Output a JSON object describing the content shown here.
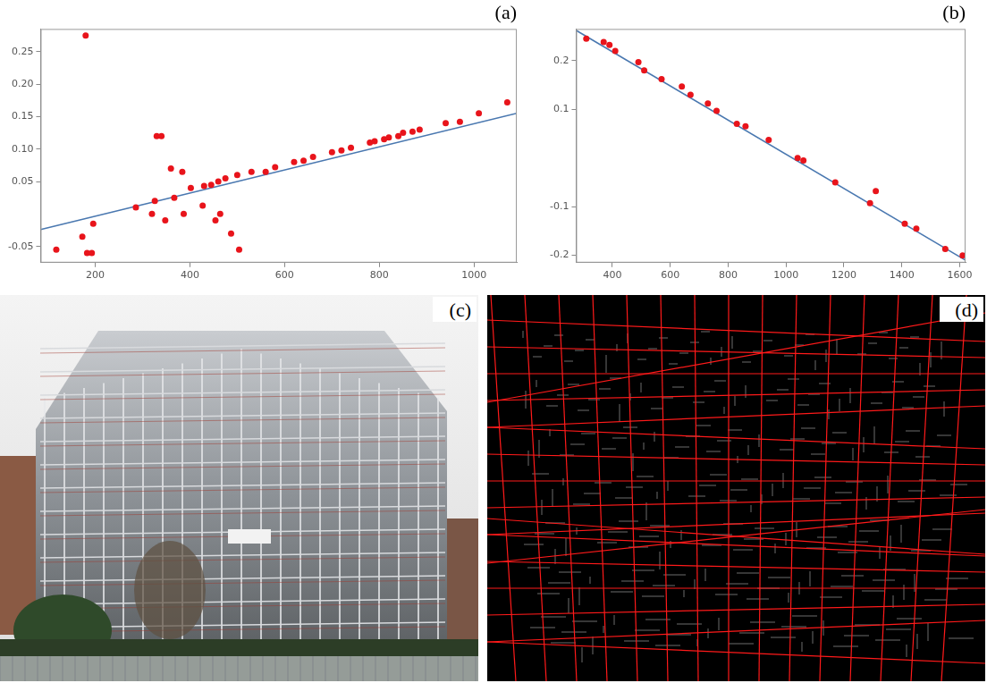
{
  "chart_data": [
    {
      "type": "scatter",
      "panel": "(a)",
      "grid": false,
      "xlim": [
        85,
        1090
      ],
      "ylim": [
        -0.075,
        0.285
      ],
      "xticks": [
        200,
        400,
        600,
        800,
        1000
      ],
      "yticks": [
        -0.05,
        0.05,
        {
          "value": 0.1,
          "label": "0.10"
        },
        0.15,
        {
          "value": 0.2,
          "label": "0.20"
        },
        0.25
      ],
      "series": [
        {
          "type": "scatter",
          "color": "#e8141b",
          "marker": "circle",
          "x": [
            118,
            173,
            180,
            183,
            193,
            196,
            286,
            320,
            326,
            330,
            340,
            348,
            360,
            367,
            384,
            387,
            402,
            427,
            430,
            445,
            454,
            460,
            464,
            475,
            487,
            500,
            504,
            530,
            560,
            580,
            620,
            640,
            660,
            700,
            720,
            740,
            780,
            790,
            810,
            820,
            840,
            850,
            870,
            885,
            940,
            970,
            1010,
            1070
          ],
          "values": [
            -0.055,
            -0.035,
            0.275,
            -0.06,
            -0.06,
            -0.015,
            0.01,
            0.0,
            0.02,
            0.12,
            0.12,
            -0.01,
            0.07,
            0.025,
            0.065,
            0.0,
            0.04,
            0.013,
            0.043,
            0.045,
            -0.01,
            0.05,
            0.0,
            0.055,
            -0.03,
            0.06,
            -0.055,
            0.065,
            0.065,
            0.072,
            0.08,
            0.082,
            0.088,
            0.095,
            0.098,
            0.102,
            0.11,
            0.112,
            0.115,
            0.118,
            0.12,
            0.125,
            0.127,
            0.13,
            0.14,
            0.142,
            0.155,
            0.172
          ]
        },
        {
          "type": "line",
          "color": "#4a78b0",
          "line_style": "solid",
          "x": [
            85,
            1090
          ],
          "values": [
            -0.024,
            0.155
          ]
        }
      ]
    },
    {
      "type": "scatter",
      "panel": "(b)",
      "grid": false,
      "xlim": [
        275,
        1620
      ],
      "ylim": [
        -0.215,
        0.265
      ],
      "xticks": [
        400,
        600,
        800,
        1000,
        1200,
        1400,
        1600
      ],
      "yticks": [
        -0.2,
        -0.1,
        0.1,
        0.2
      ],
      "series": [
        {
          "type": "scatter",
          "color": "#e8141b",
          "marker": "circle",
          "x": [
            310,
            370,
            390,
            410,
            490,
            510,
            570,
            640,
            670,
            730,
            760,
            830,
            860,
            940,
            1040,
            1060,
            1170,
            1290,
            1310,
            1410,
            1450,
            1550,
            1610
          ],
          "values": [
            0.245,
            0.238,
            0.232,
            0.22,
            0.197,
            0.18,
            0.162,
            0.147,
            0.13,
            0.112,
            0.097,
            0.07,
            0.065,
            0.037,
            0.0,
            -0.005,
            -0.05,
            -0.093,
            -0.068,
            -0.135,
            -0.145,
            -0.187,
            -0.2
          ]
        },
        {
          "type": "line",
          "color": "#4a78b0",
          "line_style": "solid",
          "x": [
            275,
            1620
          ],
          "values": [
            0.262,
            -0.21
          ]
        }
      ]
    }
  ],
  "images": [
    {
      "panel": "(c)"
    },
    {
      "panel": "(d)"
    }
  ]
}
